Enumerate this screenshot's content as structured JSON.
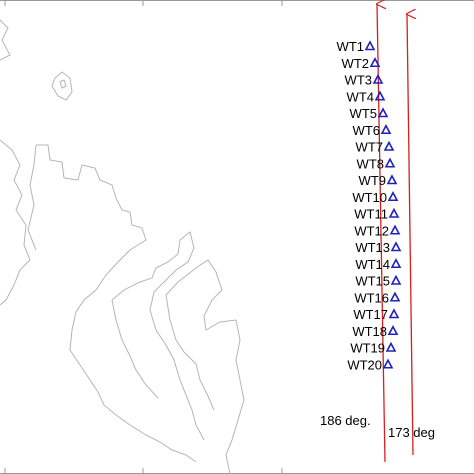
{
  "turbines": [
    "WT1",
    "WT2",
    "WT3",
    "WT4",
    "WT5",
    "WT6",
    "WT7",
    "WT8",
    "WT9",
    "WT10",
    "WT11",
    "WT12",
    "WT13",
    "WT14",
    "WT15",
    "WT16",
    "WT17",
    "WT18",
    "WT19",
    "WT20"
  ],
  "arrows": [
    {
      "label": "186 deg."
    },
    {
      "label": "173 deg"
    }
  ]
}
